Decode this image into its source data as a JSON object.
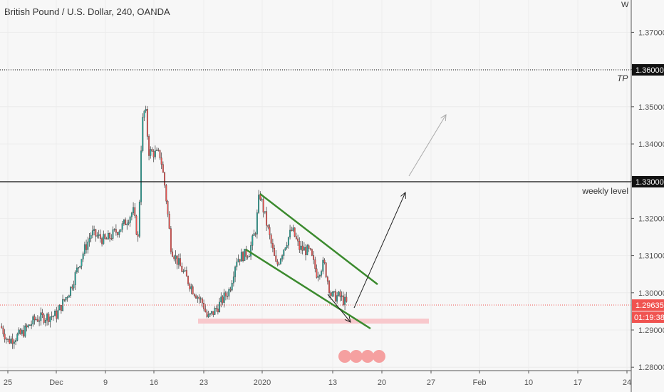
{
  "header": {
    "title": "British Pound / U.S. Dollar, 240, OANDA",
    "corner": "W"
  },
  "chart_data": {
    "type": "candlestick",
    "title": "British Pound / U.S. Dollar, 240, OANDA",
    "ylim": [
      1.275,
      1.379
    ],
    "y_ticks": [
      "1.28000",
      "1.29000",
      "1.30000",
      "1.31000",
      "1.32000",
      "1.33000",
      "1.34000",
      "1.35000",
      "1.36000",
      "1.37000"
    ],
    "x_ticks": [
      {
        "label": "25",
        "date": "2019-11-25"
      },
      {
        "label": "Dec",
        "date": "2019-12-02"
      },
      {
        "label": "9",
        "date": "2019-12-09"
      },
      {
        "label": "16",
        "date": "2019-12-16"
      },
      {
        "label": "23",
        "date": "2019-12-23"
      },
      {
        "label": "2020",
        "date": "2020-01-01"
      },
      {
        "label": "13",
        "date": "2020-01-13"
      },
      {
        "label": "20",
        "date": "2020-01-20"
      },
      {
        "label": "27",
        "date": "2020-01-27"
      },
      {
        "label": "Feb",
        "date": "2020-02-03"
      },
      {
        "label": "10",
        "date": "2020-02-10"
      },
      {
        "label": "17",
        "date": "2020-02-17"
      },
      {
        "label": "24",
        "date": "2020-02-24"
      }
    ],
    "price_path": [
      [
        "2019-11-24 00:00",
        1.291
      ],
      [
        "2019-11-25 00:00",
        1.287
      ],
      [
        "2019-11-27 00:00",
        1.289
      ],
      [
        "2019-11-29 00:00",
        1.293
      ],
      [
        "2019-12-02 00:00",
        1.294
      ],
      [
        "2019-12-04 00:00",
        1.301
      ],
      [
        "2019-12-05 16:00",
        1.31
      ],
      [
        "2019-12-07 00:00",
        1.316
      ],
      [
        "2019-12-09 00:00",
        1.314
      ],
      [
        "2019-12-11 12:00",
        1.318
      ],
      [
        "2019-12-13 00:00",
        1.322
      ],
      [
        "2019-12-13 18:00",
        1.314
      ],
      [
        "2019-12-14 06:00",
        1.345
      ],
      [
        "2019-12-14 18:00",
        1.35
      ],
      [
        "2019-12-15 06:00",
        1.338
      ],
      [
        "2019-12-16 22:00",
        1.337
      ],
      [
        "2019-12-17 14:00",
        1.328
      ],
      [
        "2019-12-18 10:00",
        1.312
      ],
      [
        "2019-12-19 10:00",
        1.308
      ],
      [
        "2019-12-21 10:00",
        1.301
      ],
      [
        "2019-12-22 22:00",
        1.297
      ],
      [
        "2019-12-23 14:00",
        1.293
      ],
      [
        "2019-12-25 02:00",
        1.296
      ],
      [
        "2019-12-27 00:00",
        1.301
      ],
      [
        "2019-12-28 00:00",
        1.309
      ],
      [
        "2019-12-30 00:00",
        1.311
      ],
      [
        "2019-12-31 00:00",
        1.317
      ],
      [
        "2019-12-31 14:00",
        1.327
      ],
      [
        "2020-01-01 20:00",
        1.318
      ],
      [
        "2020-01-03 10:00",
        1.307
      ],
      [
        "2020-01-04 22:00",
        1.313
      ],
      [
        "2020-01-06 02:00",
        1.317
      ],
      [
        "2020-01-07 08:00",
        1.312
      ],
      [
        "2020-01-09 02:00",
        1.311
      ],
      [
        "2020-01-10 08:00",
        1.305
      ],
      [
        "2020-01-11 12:00",
        1.308
      ],
      [
        "2020-01-12 18:00",
        1.299
      ],
      [
        "2020-01-14 00:00",
        1.299
      ],
      [
        "2020-01-15 00:00",
        1.297
      ]
    ],
    "last_price": "1.29635",
    "last_price_value": 1.29635,
    "countdown": "01:19:38",
    "levels": [
      {
        "price": 1.36,
        "label": "1.36000",
        "text": "TP",
        "style": "dotted"
      },
      {
        "price": 1.33,
        "label": "1.33000",
        "text": "weekly level",
        "style": "solid"
      }
    ],
    "colors": {
      "up": "#26a69a",
      "down": "#ef5350",
      "last": "#f05350",
      "channel": "#3b8a2e",
      "zone": "#f8c8cc"
    }
  }
}
